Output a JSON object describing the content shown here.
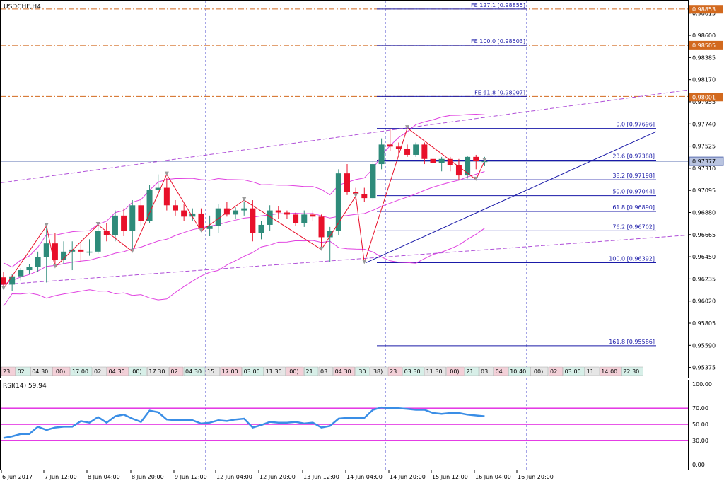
{
  "symbol_title": "USDCHF,H4",
  "current_price_label": "0.97377",
  "colors": {
    "bull": "#2e8b7a",
    "bear": "#e8102a",
    "bands": "#e040e0",
    "channel": "#b050d8",
    "fib": "#1a1aa8",
    "fe_level": "#d2691e",
    "rsi_line": "#3a8ee6",
    "rsi_level": "#e020e0",
    "zigzag": "#e8102a",
    "vline": "#2020c0"
  },
  "price_axis": {
    "ticks": [
      "0.98815",
      "0.98600",
      "0.98385",
      "0.98170",
      "0.97955",
      "0.97740",
      "0.97525",
      "0.97310",
      "0.97095",
      "0.96880",
      "0.96665",
      "0.96450",
      "0.96235",
      "0.96020",
      "0.95805",
      "0.95590",
      "0.95375"
    ],
    "highlight_labels": [
      "0.98853",
      "0.98505",
      "0.98001"
    ]
  },
  "rsi": {
    "title": "RSI(14) 59.94",
    "ticks": [
      "100.00",
      "70.00",
      "50.00",
      "30.00",
      "0.00"
    ]
  },
  "time_axis": [
    "6 Jun 2017",
    "7 Jun 12:00",
    "8 Jun 04:00",
    "8 Jun 20:00",
    "9 Jun 12:00",
    "12 Jun 04:00",
    "12 Jun 20:00",
    "13 Jun 12:00",
    "14 Jun 04:00",
    "14 Jun 20:00",
    "15 Jun 12:00",
    "16 Jun 04:00",
    "16 Jun 20:00"
  ],
  "session_strip": [
    "23:",
    "02:",
    "04:30",
    ":00)",
    "17:00",
    "02:",
    "04:30",
    ":00)",
    "17:30",
    "02:",
    "04:30",
    "15:",
    "17:00",
    "03:00",
    "11:30",
    ":00)",
    "21:",
    "03:",
    "04:30",
    ":30",
    ":38)",
    "23:",
    "03:30",
    "11:30",
    ":00)",
    "21:",
    "03:",
    "04:",
    "10:40",
    ":00)",
    "02:",
    "03:00",
    "11:",
    "14:00",
    "22:30"
  ],
  "fibo_labels": [
    "0.0 [0.97696]",
    "23.6 [0.97388]",
    "38.2 [0.97198]",
    "50.0 [0.97044]",
    "61.8 [0.96890]",
    "76.2 [0.96702]",
    "100.0 [0.96392]",
    "161.8 [0.95586]"
  ],
  "fe_labels": [
    "FE 127.1 [0.98855]",
    "FE 100.0 [0.98503]",
    "FE 61.8 [0.98007]"
  ],
  "chart_data": {
    "type": "candlestick",
    "price_range": [
      0.9529,
      0.9893
    ],
    "rsi_range": [
      0,
      100
    ],
    "candles": [
      {
        "o": 0.9625,
        "h": 0.963,
        "l": 0.9614,
        "c": 0.9618
      },
      {
        "o": 0.9618,
        "h": 0.9628,
        "l": 0.9612,
        "c": 0.9626
      },
      {
        "o": 0.9626,
        "h": 0.9634,
        "l": 0.9622,
        "c": 0.9632
      },
      {
        "o": 0.9632,
        "h": 0.9638,
        "l": 0.9628,
        "c": 0.9635
      },
      {
        "o": 0.9635,
        "h": 0.965,
        "l": 0.963,
        "c": 0.9645
      },
      {
        "o": 0.9645,
        "h": 0.9675,
        "l": 0.962,
        "c": 0.9658
      },
      {
        "o": 0.9658,
        "h": 0.9668,
        "l": 0.9635,
        "c": 0.9642
      },
      {
        "o": 0.9642,
        "h": 0.966,
        "l": 0.9638,
        "c": 0.965
      },
      {
        "o": 0.965,
        "h": 0.966,
        "l": 0.9632,
        "c": 0.9652
      },
      {
        "o": 0.9652,
        "h": 0.9658,
        "l": 0.964,
        "c": 0.965
      },
      {
        "o": 0.965,
        "h": 0.9662,
        "l": 0.9646,
        "c": 0.965
      },
      {
        "o": 0.965,
        "h": 0.9675,
        "l": 0.9648,
        "c": 0.967
      },
      {
        "o": 0.967,
        "h": 0.9678,
        "l": 0.966,
        "c": 0.9666
      },
      {
        "o": 0.9666,
        "h": 0.969,
        "l": 0.966,
        "c": 0.9685
      },
      {
        "o": 0.9685,
        "h": 0.9692,
        "l": 0.9665,
        "c": 0.967
      },
      {
        "o": 0.967,
        "h": 0.97,
        "l": 0.965,
        "c": 0.9695
      },
      {
        "o": 0.9695,
        "h": 0.97,
        "l": 0.9675,
        "c": 0.968
      },
      {
        "o": 0.968,
        "h": 0.9715,
        "l": 0.9678,
        "c": 0.971
      },
      {
        "o": 0.971,
        "h": 0.9725,
        "l": 0.9705,
        "c": 0.9712
      },
      {
        "o": 0.9712,
        "h": 0.9722,
        "l": 0.969,
        "c": 0.9695
      },
      {
        "o": 0.9695,
        "h": 0.97,
        "l": 0.9685,
        "c": 0.969
      },
      {
        "o": 0.969,
        "h": 0.9696,
        "l": 0.968,
        "c": 0.9684
      },
      {
        "o": 0.9684,
        "h": 0.9692,
        "l": 0.968,
        "c": 0.9687
      },
      {
        "o": 0.9687,
        "h": 0.9692,
        "l": 0.967,
        "c": 0.9672
      },
      {
        "o": 0.9672,
        "h": 0.9685,
        "l": 0.9665,
        "c": 0.9675
      },
      {
        "o": 0.9675,
        "h": 0.9696,
        "l": 0.9668,
        "c": 0.9692
      },
      {
        "o": 0.9692,
        "h": 0.9698,
        "l": 0.9684,
        "c": 0.9686
      },
      {
        "o": 0.9686,
        "h": 0.9693,
        "l": 0.9682,
        "c": 0.969
      },
      {
        "o": 0.969,
        "h": 0.9698,
        "l": 0.9685,
        "c": 0.9692
      },
      {
        "o": 0.9692,
        "h": 0.97,
        "l": 0.966,
        "c": 0.9668
      },
      {
        "o": 0.9668,
        "h": 0.968,
        "l": 0.9662,
        "c": 0.9676
      },
      {
        "o": 0.9676,
        "h": 0.9695,
        "l": 0.967,
        "c": 0.969
      },
      {
        "o": 0.969,
        "h": 0.9694,
        "l": 0.9682,
        "c": 0.9688
      },
      {
        "o": 0.9688,
        "h": 0.969,
        "l": 0.9682,
        "c": 0.9686
      },
      {
        "o": 0.9686,
        "h": 0.9688,
        "l": 0.9675,
        "c": 0.9678
      },
      {
        "o": 0.9678,
        "h": 0.969,
        "l": 0.9674,
        "c": 0.9686
      },
      {
        "o": 0.9686,
        "h": 0.969,
        "l": 0.968,
        "c": 0.9684
      },
      {
        "o": 0.9684,
        "h": 0.9686,
        "l": 0.9652,
        "c": 0.9664
      },
      {
        "o": 0.9664,
        "h": 0.9674,
        "l": 0.964,
        "c": 0.967
      },
      {
        "o": 0.967,
        "h": 0.973,
        "l": 0.9666,
        "c": 0.9726
      },
      {
        "o": 0.9726,
        "h": 0.9735,
        "l": 0.9705,
        "c": 0.9708
      },
      {
        "o": 0.9708,
        "h": 0.9712,
        "l": 0.97,
        "c": 0.9706
      },
      {
        "o": 0.9706,
        "h": 0.9712,
        "l": 0.9698,
        "c": 0.9702
      },
      {
        "o": 0.9702,
        "h": 0.9738,
        "l": 0.97,
        "c": 0.9735
      },
      {
        "o": 0.9735,
        "h": 0.976,
        "l": 0.973,
        "c": 0.9754
      },
      {
        "o": 0.9754,
        "h": 0.977,
        "l": 0.9748,
        "c": 0.9752
      },
      {
        "o": 0.9752,
        "h": 0.9756,
        "l": 0.9744,
        "c": 0.975
      },
      {
        "o": 0.975,
        "h": 0.9754,
        "l": 0.9742,
        "c": 0.9744
      },
      {
        "o": 0.9744,
        "h": 0.9756,
        "l": 0.9742,
        "c": 0.9754
      },
      {
        "o": 0.9754,
        "h": 0.9756,
        "l": 0.9735,
        "c": 0.974
      },
      {
        "o": 0.974,
        "h": 0.9746,
        "l": 0.9732,
        "c": 0.9736
      },
      {
        "o": 0.9736,
        "h": 0.9742,
        "l": 0.9728,
        "c": 0.974
      },
      {
        "o": 0.974,
        "h": 0.9742,
        "l": 0.9728,
        "c": 0.9734
      },
      {
        "o": 0.9734,
        "h": 0.974,
        "l": 0.972,
        "c": 0.9724
      },
      {
        "o": 0.9724,
        "h": 0.9743,
        "l": 0.9721,
        "c": 0.9742
      },
      {
        "o": 0.9742,
        "h": 0.9744,
        "l": 0.973,
        "c": 0.9738
      },
      {
        "o": 0.9738,
        "h": 0.9742,
        "l": 0.9733,
        "c": 0.9738
      }
    ],
    "rsi_values": [
      33,
      35,
      38,
      38,
      47,
      43,
      46,
      47,
      47,
      54,
      52,
      59,
      52,
      60,
      62,
      57,
      53,
      67,
      65,
      56,
      55,
      55,
      55,
      51,
      52,
      55,
      54,
      56,
      57,
      46,
      49,
      53,
      52,
      52,
      53,
      51,
      52,
      46,
      48,
      57,
      58,
      58,
      58,
      68,
      71,
      70,
      70,
      69,
      68,
      68,
      64,
      63,
      64,
      64,
      62,
      61,
      60
    ],
    "fibo_levels": [
      0.97696,
      0.97388,
      0.97198,
      0.97044,
      0.9689,
      0.96702,
      0.96392,
      0.95586
    ],
    "fe_levels": [
      0.98855,
      0.98503,
      0.98007
    ],
    "rsi_levels": [
      70,
      50,
      30
    ]
  }
}
